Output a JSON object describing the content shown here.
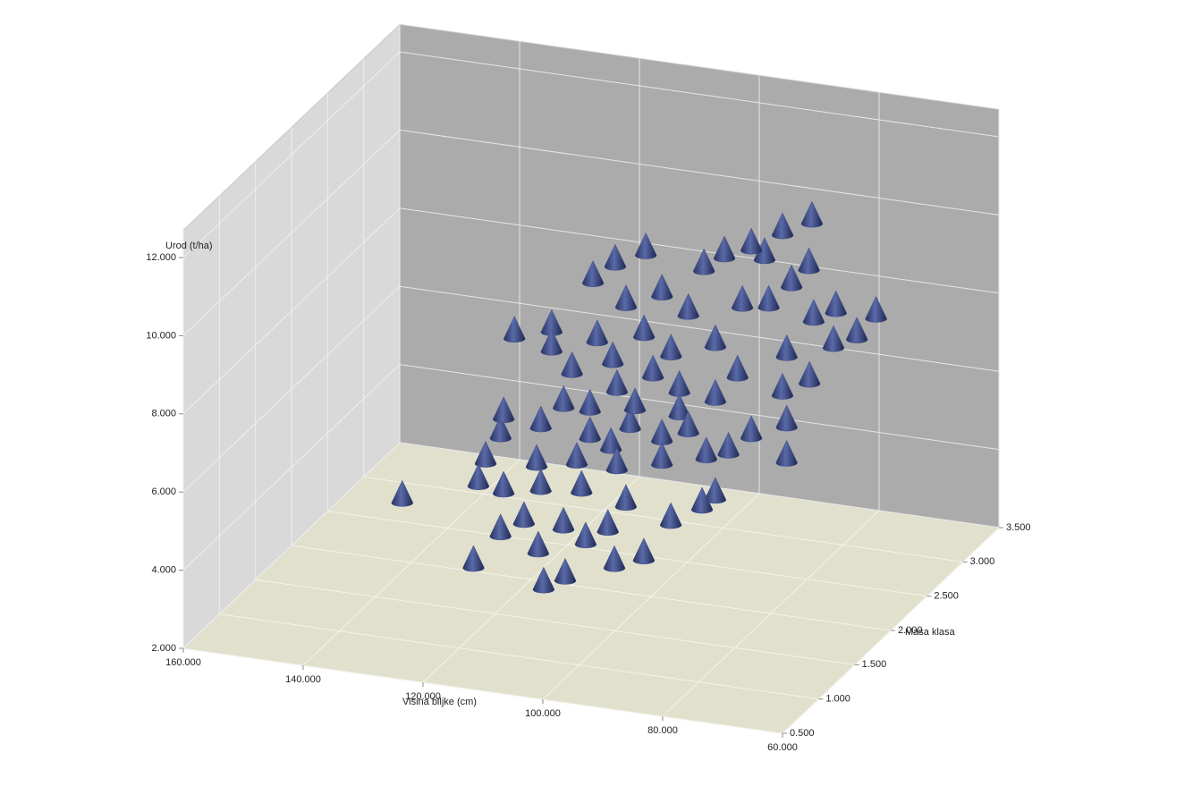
{
  "chart_data": {
    "type": "scatter3d",
    "x_label": "Visina biljke (cm)",
    "y_label": "Masa klasa",
    "z_label": "Urod (t/ha)",
    "x": [
      135.5,
      120,
      109.5,
      107.1,
      101.3,
      97.6,
      119.1,
      111.6,
      116.4,
      108.6,
      107.3,
      104.8,
      96.7,
      125.2,
      122.2,
      116,
      111.6,
      105.4,
      95.1,
      94.1,
      125.2,
      119.1,
      113.6,
      108.1,
      101.8,
      96.8,
      94.3,
      125.1,
      124.6,
      119.6,
      117,
      113.8,
      108.3,
      103,
      99.8,
      92.9,
      89.4,
      87,
      113.8,
      110.5,
      110,
      105.7,
      102.5,
      98.9,
      96.4,
      122.8,
      119,
      117.8,
      113.8,
      114.5,
      112,
      108.1,
      106.6,
      111.4,
      103.4,
      102,
      99.8,
      95.3,
      92.5,
      88.8,
      89.3,
      94.3,
      96.8,
      91,
      84.8,
      79.3,
      82.5,
      84,
      86.1,
      89.4,
      86.8,
      88.9,
      92.4,
      108.4,
      98.9,
      105.1,
      107.5,
      102.5,
      115.6,
      109.1
    ],
    "y": [
      1.5,
      1.2,
      1.3,
      1.4,
      1.6,
      1.7,
      1.5,
      1.4,
      1.6,
      1.5,
      1.7,
      1.8,
      2.0,
      1.7,
      1.8,
      1.8,
      2.0,
      2.1,
      2.3,
      2.4,
      1.8,
      2.0,
      2.1,
      2.2,
      2.3,
      2.5,
      2.6,
      2.0,
      2.0,
      2.1,
      2.2,
      2.3,
      2.4,
      2.4,
      2.5,
      2.8,
      3.0,
      2.8,
      2.3,
      2.4,
      2.3,
      2.5,
      2.6,
      2.8,
      2.9,
      2.0,
      2.2,
      2.1,
      2.4,
      2.4,
      2.5,
      2.6,
      2.7,
      2.6,
      2.8,
      2.9,
      3.0,
      3.0,
      3.2,
      3.3,
      3.3,
      3.1,
      3.0,
      3.2,
      3.3,
      3.4,
      3.4,
      3.2,
      3.1,
      3.0,
      3.1,
      2.9,
      3.0,
      2.6,
      2.8,
      2.7,
      2.4,
      2.6,
      2.2,
      2.2
    ],
    "z": [
      4.5,
      3.7,
      3.2,
      3.3,
      3.4,
      3.5,
      4.0,
      3.9,
      4.2,
      4.4,
      3.7,
      3.9,
      3.9,
      4.8,
      4.5,
      4.7,
      4.4,
      4.0,
      3.8,
      3.9,
      5.2,
      4.9,
      4.9,
      4.7,
      4.8,
      4.7,
      4.7,
      5.5,
      6.0,
      5.7,
      6.1,
      5.2,
      5.4,
      5.2,
      5.3,
      4.8,
      4.8,
      4.3,
      5.9,
      6.3,
      7.2,
      6.6,
      6.1,
      5.6,
      6.1,
      8.1,
      8.0,
      7.7,
      7.5,
      9.0,
      9.3,
      9.5,
      8.3,
      8.1,
      7.7,
      8.7,
      8.9,
      9.2,
      9.3,
      9.5,
      8.3,
      8.8,
      7.7,
      8.0,
      7.3,
      7.1,
      6.5,
      6.6,
      7.4,
      6.6,
      5.8,
      5.8,
      7.8,
      7.4,
      7.0,
      6.8,
      5.9,
      5.5,
      7.0,
      5.2
    ],
    "color": "#3b4a86",
    "xlim": [
      160,
      60
    ],
    "ylim": [
      0.5,
      3.5
    ],
    "zlim": [
      2,
      12.7
    ],
    "xticks": [
      {
        "value": 160,
        "label": "160.000"
      },
      {
        "value": 140,
        "label": "140.000"
      },
      {
        "value": 120,
        "label": "120.000"
      },
      {
        "value": 100,
        "label": "100.000"
      },
      {
        "value": 80,
        "label": "80.000"
      },
      {
        "value": 60,
        "label": "60.000"
      }
    ],
    "yticks": [
      {
        "value": 0.5,
        "label": "0.500"
      },
      {
        "value": 1,
        "label": "1.000"
      },
      {
        "value": 1.5,
        "label": "1.500"
      },
      {
        "value": 2,
        "label": "2.000"
      },
      {
        "value": 2.5,
        "label": "2.500"
      },
      {
        "value": 3,
        "label": "3.000"
      },
      {
        "value": 3.5,
        "label": "3.500"
      }
    ],
    "zticks": [
      {
        "value": 2,
        "label": "2.000"
      },
      {
        "value": 4,
        "label": "4.000"
      },
      {
        "value": 6,
        "label": "6.000"
      },
      {
        "value": 8,
        "label": "8.000"
      },
      {
        "value": 10,
        "label": "10.000"
      },
      {
        "value": 12,
        "label": "12.000"
      }
    ],
    "grid": true
  }
}
